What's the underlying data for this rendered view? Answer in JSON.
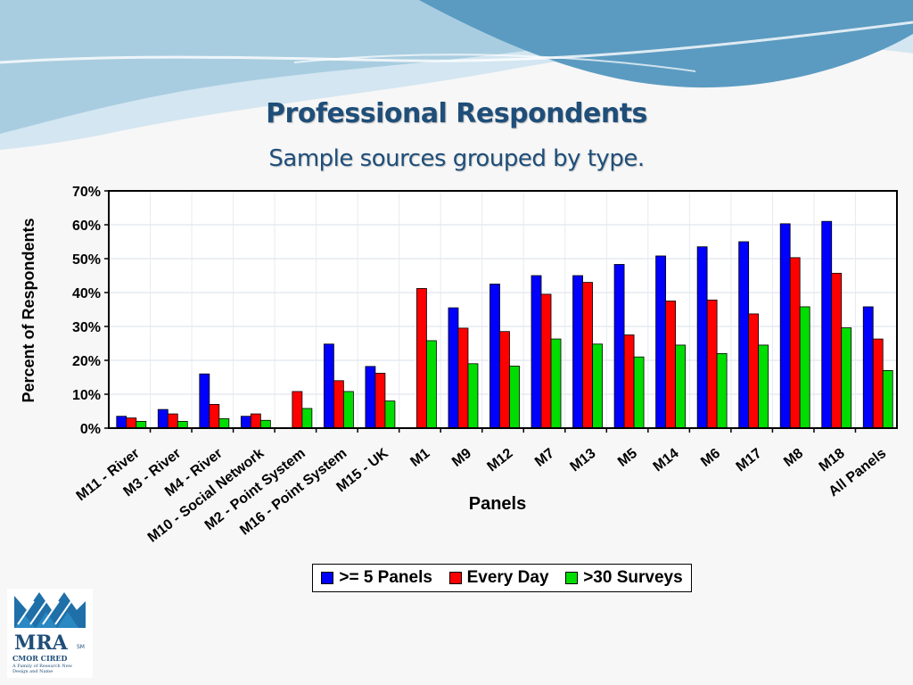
{
  "slide": {
    "title": "Professional Respondents",
    "subtitle": "Sample sources grouped by type.",
    "logo": {
      "text": "MRA",
      "mark": "SM",
      "subline": "CMOR CIRED",
      "tagline": "A Family of Research New Design and Name"
    },
    "colors": {
      "title": "#1f4e79",
      "wave_dark": "#5b9bc1",
      "wave_light": "#a9cde0"
    }
  },
  "chart_data": {
    "type": "bar",
    "title": "",
    "xlabel": "Panels",
    "ylabel": "Percent of Respondents",
    "ylim": [
      0,
      70
    ],
    "yticks": [
      "0%",
      "10%",
      "20%",
      "30%",
      "40%",
      "50%",
      "60%",
      "70%"
    ],
    "grid": true,
    "legend_position": "bottom",
    "categories": [
      "M11 - River",
      "M3 - River",
      "M4 - River",
      "M10 - Social Network",
      "M2 - Point System",
      "M16 - Point System",
      "M15 - UK",
      "M1",
      "M9",
      "M12",
      "M7",
      "M13",
      "M5",
      "M14",
      "M6",
      "M17",
      "M8",
      "M18",
      "All Panels"
    ],
    "series": [
      {
        "name": ">= 5 Panels",
        "color": "#0000ff",
        "values": [
          3.5,
          5.5,
          16,
          3.5,
          0,
          24.8,
          18.2,
          0,
          35.5,
          42.5,
          45,
          45,
          48.3,
          50.8,
          53.5,
          55,
          60.3,
          61,
          35.8
        ]
      },
      {
        "name": "Every Day",
        "color": "#ff0000",
        "values": [
          3,
          4.2,
          7,
          4.2,
          10.8,
          14,
          16.2,
          41.2,
          29.5,
          28.5,
          39.5,
          43,
          27.5,
          37.5,
          37.8,
          33.7,
          50.3,
          45.7,
          26.3
        ]
      },
      {
        "name": ">30 Surveys",
        "color": "#00dd00",
        "values": [
          2,
          2,
          2.8,
          2.3,
          5.8,
          10.8,
          8,
          25.8,
          19,
          18.3,
          26.3,
          24.8,
          21,
          24.5,
          22,
          24.5,
          35.8,
          29.6,
          17
        ]
      }
    ]
  }
}
